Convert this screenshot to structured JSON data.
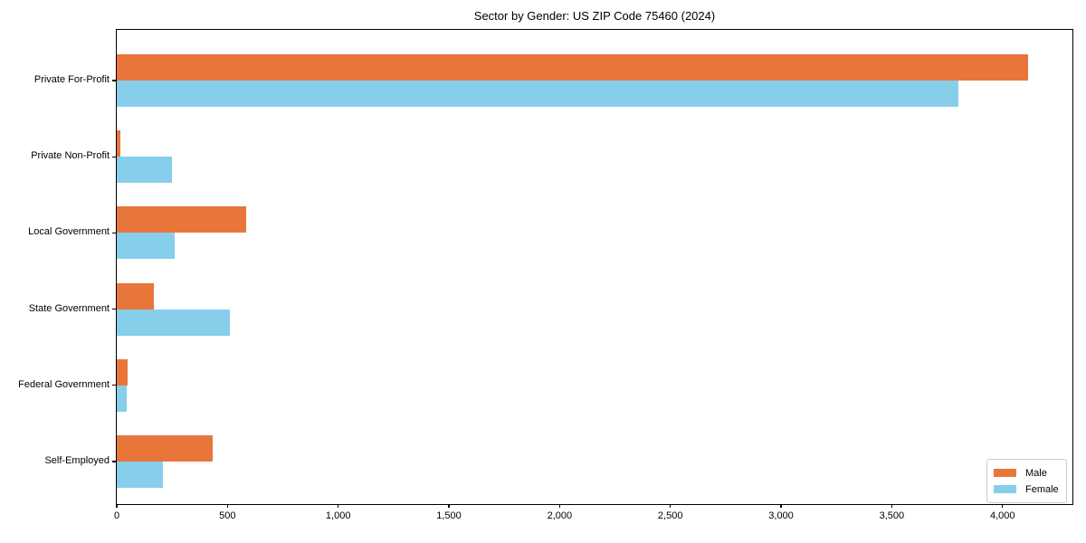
{
  "page": {
    "background": "#ffffff",
    "text_color": "#000000",
    "spine_color": "#000000"
  },
  "chart_data": {
    "type": "bar",
    "orientation": "horizontal",
    "title": "Sector by Gender: US ZIP Code 75460 (2024)",
    "categories": [
      "Private For-Profit",
      "Private Non-Profit",
      "Local Government",
      "State Government",
      "Federal Government",
      "Self-Employed"
    ],
    "series": [
      {
        "name": "Male",
        "color": "#e8763b",
        "values": [
          4115,
          15,
          585,
          168,
          50,
          435
        ]
      },
      {
        "name": "Female",
        "color": "#87ceeb",
        "values": [
          3800,
          250,
          263,
          510,
          45,
          210
        ]
      }
    ],
    "xlabel": "",
    "ylabel": "",
    "xlim": [
      0,
      4324
    ],
    "x_ticks": [
      0,
      500,
      1000,
      1500,
      2000,
      2500,
      3000,
      3500,
      4000
    ],
    "x_tick_labels": [
      "0",
      "500",
      "1,000",
      "1,500",
      "2,000",
      "2,500",
      "3,000",
      "3,500",
      "4,000"
    ],
    "grid": false,
    "legend": {
      "position": "lower right",
      "entries": [
        "Male",
        "Female"
      ]
    }
  }
}
